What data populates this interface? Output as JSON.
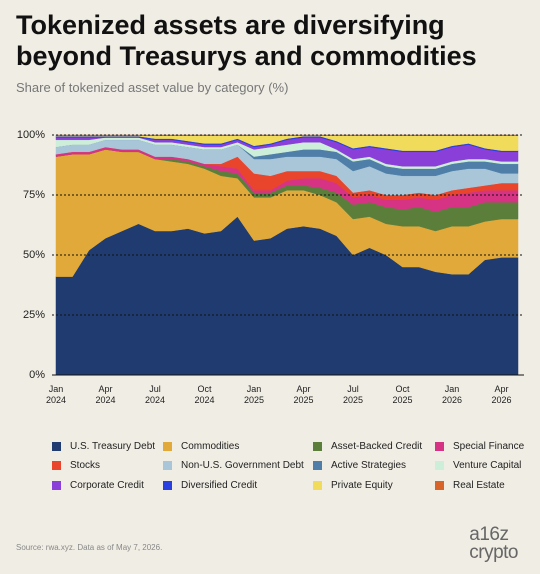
{
  "chart_data": {
    "type": "stacked_area",
    "title": "Tokenized assets are diversifying beyond Treasurys and commodities",
    "subtitle": "Share of tokenized asset value by category (%)",
    "source": "Source: rwa.xyz. Data as of May 7, 2026.",
    "logo": [
      "a16z",
      "crypto"
    ],
    "categories": [
      "Jan 2024",
      null,
      null,
      "Apr 2024",
      null,
      null,
      "Jul 2024",
      null,
      null,
      "Oct 2024",
      null,
      null,
      "Jan 2025",
      null,
      null,
      "Apr 2025",
      null,
      null,
      "Jul 2025",
      null,
      null,
      "Oct 2025",
      null,
      null,
      "Jan 2026",
      null,
      null,
      "Apr 2026",
      null
    ],
    "ylim": [
      0,
      100
    ],
    "yticks": [
      {
        "value": 0,
        "label": "0%"
      },
      {
        "value": 25,
        "label": "25%"
      },
      {
        "value": 50,
        "label": "50%"
      },
      {
        "value": 75,
        "label": "75%"
      },
      {
        "value": 100,
        "label": "100%"
      }
    ],
    "grid": true,
    "series": [
      {
        "name": "U.S. Treasury Debt",
        "color": "#1f3b6f",
        "values": [
          41,
          41,
          52,
          57,
          60,
          63,
          60,
          60,
          61,
          59,
          60,
          66,
          56,
          57,
          61,
          62,
          61,
          58,
          50,
          53,
          50,
          45,
          45,
          43,
          42,
          42,
          48,
          49,
          49
        ]
      },
      {
        "name": "Commodities",
        "color": "#e0a93a",
        "values": [
          50,
          51,
          40,
          37,
          33,
          30,
          30,
          29,
          27,
          27,
          23,
          16,
          18,
          17,
          16,
          15,
          14,
          14,
          15,
          13,
          13,
          17,
          17,
          17,
          20,
          20,
          16,
          16,
          16
        ]
      },
      {
        "name": "Asset-Backed Credit",
        "color": "#5b7f3b",
        "values": [
          0,
          0,
          0,
          0,
          0,
          0,
          0,
          1,
          1,
          1,
          2,
          2,
          2,
          2,
          2,
          2,
          3,
          4,
          6,
          6,
          7,
          7,
          8,
          8,
          8,
          8,
          8,
          7,
          7
        ]
      },
      {
        "name": "Special Finance",
        "color": "#d63384",
        "values": [
          1,
          1,
          1,
          1,
          1,
          1,
          1,
          1,
          1,
          1,
          2,
          2,
          1,
          1,
          2,
          3,
          4,
          4,
          3,
          3,
          3,
          4,
          4,
          5,
          5,
          6,
          5,
          5,
          5
        ]
      },
      {
        "name": "Stocks",
        "color": "#e8452c",
        "values": [
          0,
          0,
          0,
          0,
          0,
          0,
          0,
          0,
          0,
          0,
          1,
          5,
          7,
          6,
          4,
          3,
          3,
          3,
          2,
          2,
          2,
          2,
          2,
          2,
          2,
          2,
          2,
          3,
          3
        ]
      },
      {
        "name": "Non-U.S. Government Debt",
        "color": "#a9c6d9",
        "values": [
          3,
          3,
          3,
          3,
          4,
          4,
          5,
          5,
          5,
          6,
          6,
          5,
          6,
          7,
          6,
          6,
          6,
          7,
          9,
          10,
          9,
          8,
          7,
          8,
          8,
          8,
          7,
          4,
          4
        ]
      },
      {
        "name": "Active Strategies",
        "color": "#4f7fa8",
        "values": [
          0,
          0,
          0,
          0,
          0,
          0,
          0,
          0,
          0,
          0,
          0,
          0,
          1,
          2,
          2,
          3,
          3,
          3,
          4,
          3,
          3,
          3,
          3,
          3,
          3,
          3,
          3,
          4,
          4
        ]
      },
      {
        "name": "Venture Capital",
        "color": "#cdeed8",
        "values": [
          3,
          2,
          2,
          1,
          1,
          1,
          1,
          1,
          1,
          1,
          1,
          1,
          3,
          3,
          3,
          3,
          3,
          1,
          1,
          1,
          1,
          1,
          1,
          1,
          1,
          1,
          1,
          1,
          1
        ]
      },
      {
        "name": "Corporate Credit",
        "color": "#8a3fd9",
        "values": [
          1,
          1,
          1,
          0,
          0,
          0,
          1,
          1,
          1,
          1,
          1,
          1,
          1,
          1,
          2,
          2,
          2,
          3,
          4,
          4,
          6,
          6,
          6,
          6,
          6,
          6,
          4,
          4,
          4
        ]
      },
      {
        "name": "Diversified Credit",
        "color": "#2a3fe0",
        "values": [
          0.5,
          0.5,
          0.5,
          0.5,
          0.5,
          0.5,
          0.5,
          0.5,
          0.5,
          0.5,
          0.5,
          0.5,
          0.5,
          0.5,
          0.5,
          0.5,
          0.5,
          0.5,
          0.5,
          0.5,
          0.5,
          0.5,
          0.5,
          0.5,
          0.5,
          0.5,
          0.5,
          0.5,
          0.5
        ]
      },
      {
        "name": "Private Equity",
        "color": "#f0dc5a",
        "values": [
          0.2,
          0.2,
          0.2,
          0.2,
          0.2,
          0.2,
          1.2,
          1.2,
          2.2,
          3.2,
          3.2,
          1.2,
          4.2,
          3.2,
          1.2,
          0.2,
          0.2,
          2.2,
          5.2,
          4.2,
          5.2,
          6.2,
          6.2,
          6.2,
          4.2,
          3.2,
          5.2,
          6.2,
          6.2
        ]
      },
      {
        "name": "Real Estate",
        "color": "#d9642a",
        "values": [
          0.3,
          0.3,
          0.3,
          0.3,
          0.3,
          0.3,
          0.3,
          0.3,
          0.3,
          0.3,
          0.3,
          0.3,
          0.3,
          0.3,
          0.3,
          0.3,
          0.3,
          0.3,
          0.3,
          0.3,
          0.3,
          0.3,
          0.3,
          0.3,
          0.3,
          0.3,
          0.3,
          0.3,
          0.3
        ]
      }
    ]
  }
}
